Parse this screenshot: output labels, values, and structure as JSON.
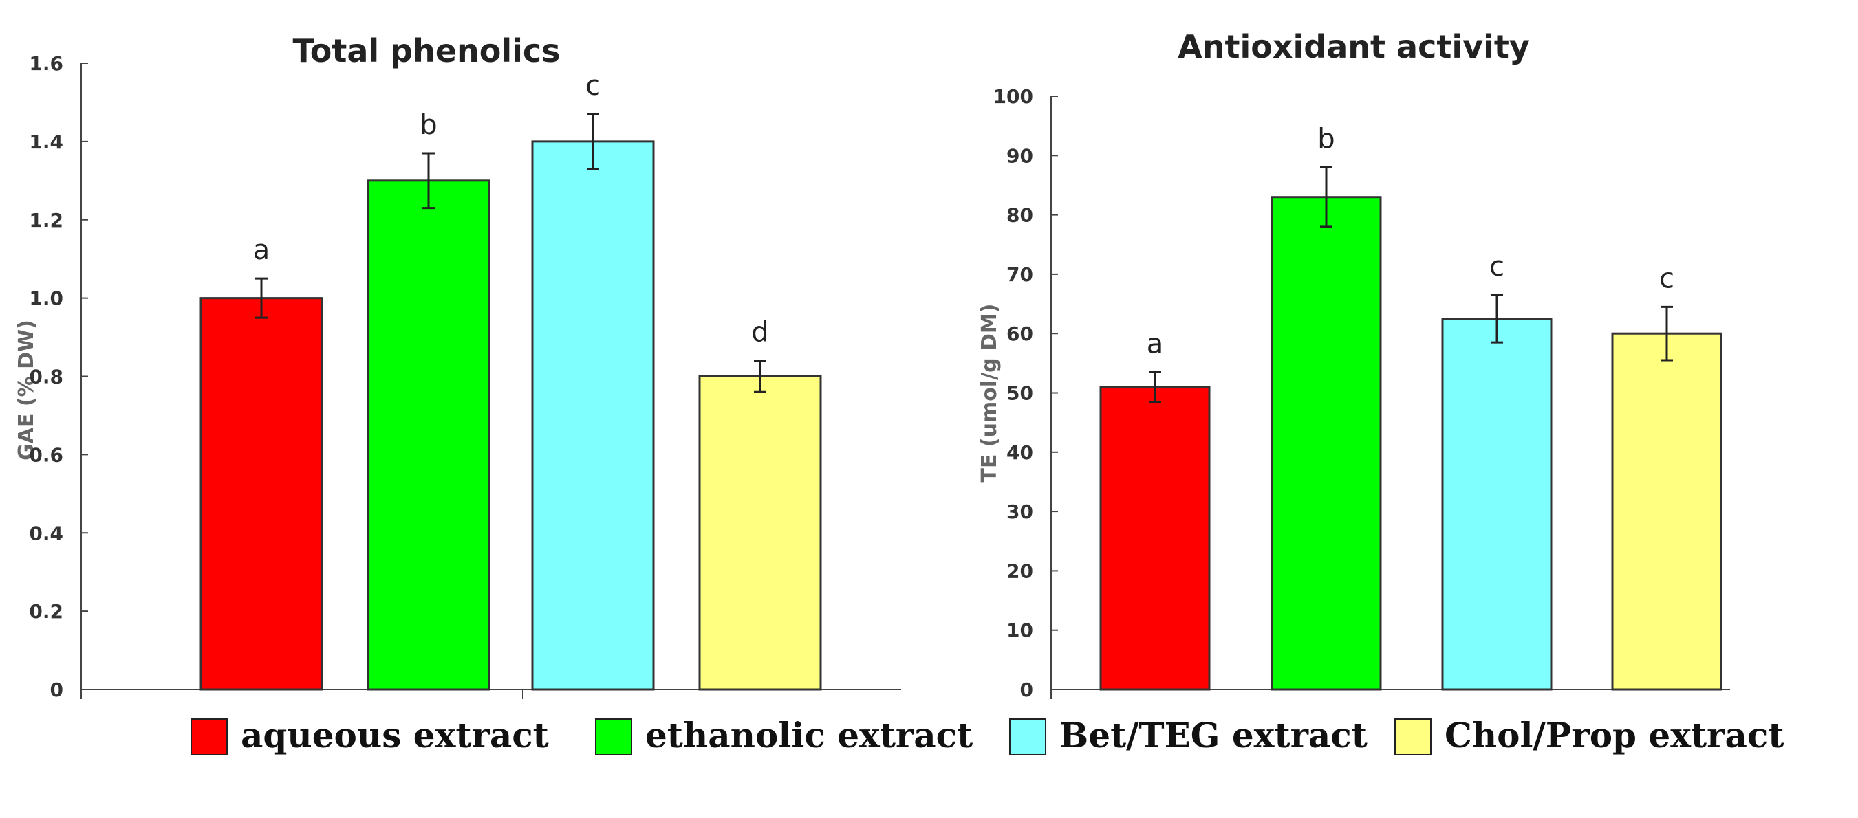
{
  "chart_data": [
    {
      "type": "bar",
      "title": "Total phenolics",
      "xlabel": "",
      "ylabel": "GAE (% DW)",
      "ylim": [
        0,
        1.6
      ],
      "yticks": [
        "0",
        "0.2",
        "0.4",
        "0.6",
        "0.8",
        "1.0",
        "1.2",
        "1.4",
        "1.6"
      ],
      "categories": [
        "aqueous extract",
        "ethanolic extract",
        "Bet/TEG extract",
        "Chol/Prop extract"
      ],
      "values": [
        1.0,
        1.3,
        1.4,
        0.8
      ],
      "errors": [
        0.05,
        0.07,
        0.07,
        0.04
      ],
      "significance": [
        "a",
        "b",
        "c",
        "d"
      ],
      "colors": [
        "#ff0000",
        "#00ff00",
        "#80ffff",
        "#ffff80"
      ]
    },
    {
      "type": "bar",
      "title": "Antioxidant activity",
      "xlabel": "",
      "ylabel": "TE (umol/g DM)",
      "ylim": [
        0,
        100
      ],
      "yticks": [
        "0",
        "10",
        "20",
        "30",
        "40",
        "50",
        "60",
        "70",
        "80",
        "90",
        "100"
      ],
      "categories": [
        "aqueous extract",
        "ethanolic extract",
        "Bet/TEG extract",
        "Chol/Prop extract"
      ],
      "values": [
        51,
        83,
        62.5,
        60
      ],
      "errors": [
        2.5,
        5,
        4,
        4.5
      ],
      "significance": [
        "a",
        "b",
        "c",
        "c"
      ],
      "colors": [
        "#ff0000",
        "#00ff00",
        "#80ffff",
        "#ffff80"
      ]
    }
  ],
  "legend": {
    "items": [
      {
        "label": "aqueous extract",
        "color": "#ff0000"
      },
      {
        "label": "ethanolic extract",
        "color": "#00ff00"
      },
      {
        "label": "Bet/TEG extract",
        "color": "#80ffff"
      },
      {
        "label": "Chol/Prop extract",
        "color": "#ffff80"
      }
    ]
  }
}
